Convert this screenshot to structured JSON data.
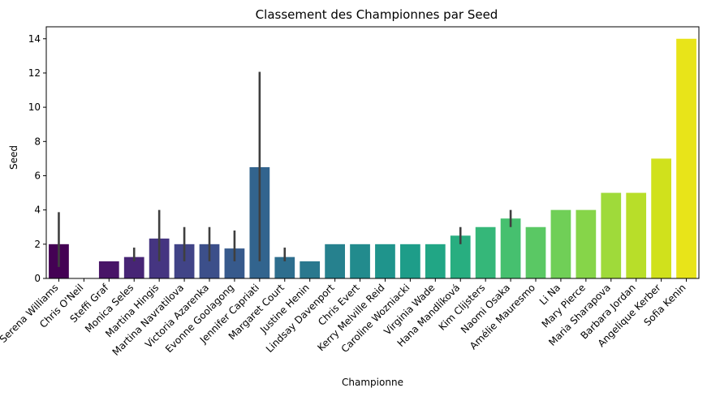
{
  "chart_data": {
    "type": "bar",
    "title": "Classement des Championnes par Seed",
    "xlabel": "Championne",
    "ylabel": "Seed",
    "ylim": [
      0,
      14.7
    ],
    "yticks": [
      0,
      2,
      4,
      6,
      8,
      10,
      12,
      14
    ],
    "grid": false,
    "legend": "none",
    "palette": "viridis",
    "categories": [
      "Serena Williams",
      "Chris O'Neil",
      "Steffi Graf",
      "Monica Seles",
      "Martina Hingis",
      "Martina Navratilova",
      "Victoria Azarenka",
      "Evonne Goolagong",
      "Jennifer Capriati",
      "Margaret Court",
      "Justine Henin",
      "Lindsay Davenport",
      "Chris Evert",
      "Kerry Melville Reid",
      "Caroline Wozniacki",
      "Virginia Wade",
      "Hana Mandlíková",
      "Kim Clijsters",
      "Naomi Osaka",
      "Amélie Mauresmo",
      "Li Na",
      "Mary Pierce",
      "Maria Sharapova",
      "Barbara Jordan",
      "Angelique Kerber",
      "Sofia Kenin"
    ],
    "values": [
      2.0,
      0,
      1.0,
      1.25,
      2.33,
      2.0,
      2.0,
      1.75,
      6.5,
      1.25,
      1.0,
      2.0,
      2.0,
      2.0,
      2.0,
      2.0,
      2.5,
      3.0,
      3.5,
      3.0,
      4.0,
      4.0,
      5.0,
      5.0,
      7.0,
      14.0
    ],
    "error_bars": [
      [
        0.67,
        3.87
      ],
      null,
      null,
      [
        1.0,
        1.8
      ],
      [
        1.0,
        4.0
      ],
      [
        1.0,
        3.0
      ],
      [
        1.0,
        3.0
      ],
      [
        1.0,
        2.8
      ],
      [
        1.0,
        12.07
      ],
      [
        1.0,
        1.8
      ],
      null,
      null,
      null,
      null,
      null,
      null,
      [
        2.0,
        3.0
      ],
      null,
      [
        3.0,
        4.0
      ],
      null,
      null,
      null,
      null,
      null,
      null,
      null
    ],
    "colors": [
      "#440154",
      "#46085c",
      "#481467",
      "#472575",
      "#453581",
      "#414487",
      "#3c4f8a",
      "#375a8c",
      "#32648e",
      "#2e6e8e",
      "#2a788e",
      "#26818e",
      "#228b8d",
      "#1f948c",
      "#1e9d89",
      "#21a685",
      "#28ae80",
      "#35b779",
      "#46c06f",
      "#5ac864",
      "#70cf57",
      "#86d549",
      "#9fda3a",
      "#b8de29",
      "#d0e11c",
      "#e8e419"
    ],
    "error_color": "#3f3f3f"
  }
}
